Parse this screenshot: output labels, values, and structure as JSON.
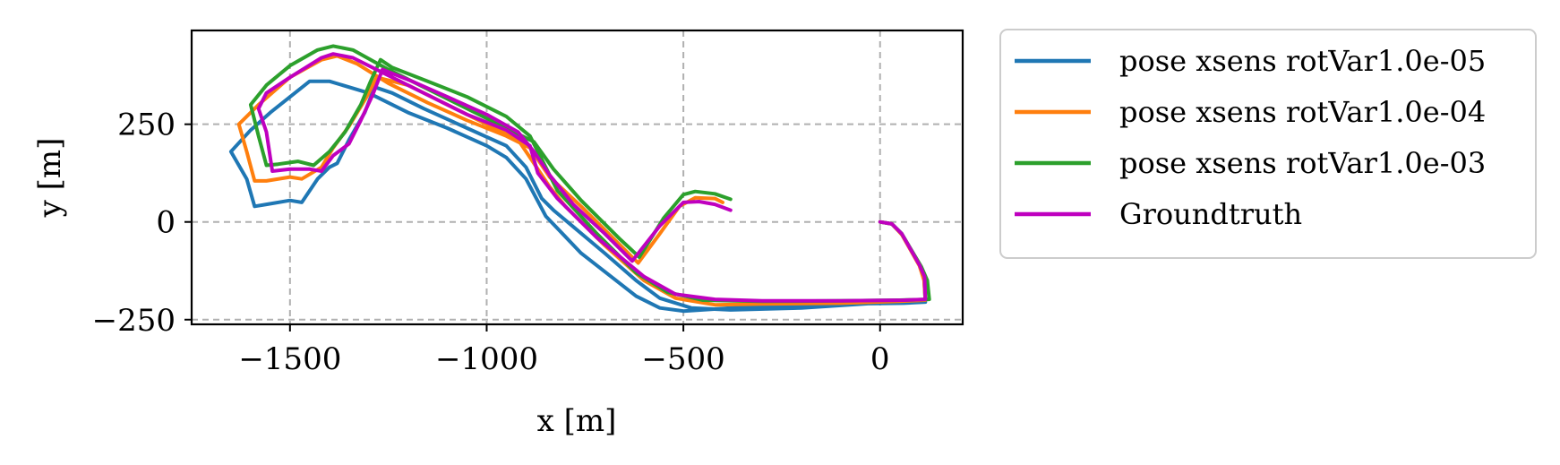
{
  "chart_data": {
    "type": "line",
    "title": "",
    "xlabel": "x [m]",
    "ylabel": "y [m]",
    "xlim": [
      -1750,
      210
    ],
    "ylim": [
      -262,
      490
    ],
    "xticks": [
      {
        "value": -1500,
        "label": "−1500"
      },
      {
        "value": -1000,
        "label": "−1000"
      },
      {
        "value": -500,
        "label": "−500"
      },
      {
        "value": 0,
        "label": "0"
      }
    ],
    "yticks": [
      {
        "value": -250,
        "label": "−250"
      },
      {
        "value": 0,
        "label": "0"
      },
      {
        "value": 250,
        "label": "250"
      }
    ],
    "grid": true,
    "grid_style": "dashed",
    "legend_position": "outside-right-top",
    "series": [
      {
        "name": "pose xsens rotVar1.0e-05",
        "color": "#1f77b4",
        "points": [
          [
            0,
            0
          ],
          [
            30,
            -5
          ],
          [
            55,
            -30
          ],
          [
            100,
            -110
          ],
          [
            112,
            -145
          ],
          [
            115,
            -205
          ],
          [
            60,
            -208
          ],
          [
            -100,
            -210
          ],
          [
            -300,
            -215
          ],
          [
            -500,
            -228
          ],
          [
            -560,
            -220
          ],
          [
            -620,
            -190
          ],
          [
            -760,
            -80
          ],
          [
            -850,
            15
          ],
          [
            -900,
            110
          ],
          [
            -950,
            165
          ],
          [
            -1000,
            195
          ],
          [
            -1100,
            240
          ],
          [
            -1200,
            280
          ],
          [
            -1300,
            330
          ],
          [
            -1400,
            360
          ],
          [
            -1450,
            360
          ],
          [
            -1550,
            280
          ],
          [
            -1600,
            235
          ],
          [
            -1650,
            180
          ],
          [
            -1610,
            110
          ],
          [
            -1590,
            40
          ],
          [
            -1560,
            45
          ],
          [
            -1500,
            55
          ],
          [
            -1470,
            50
          ],
          [
            -1430,
            110
          ],
          [
            -1400,
            140
          ],
          [
            -1380,
            150
          ],
          [
            -1350,
            210
          ],
          [
            -1310,
            280
          ],
          [
            -1285,
            345
          ],
          [
            -1240,
            330
          ],
          [
            -1160,
            290
          ],
          [
            -1050,
            240
          ],
          [
            -950,
            195
          ],
          [
            -900,
            140
          ],
          [
            -860,
            60
          ],
          [
            -830,
            30
          ],
          [
            -700,
            -80
          ],
          [
            -620,
            -150
          ],
          [
            -560,
            -195
          ],
          [
            -480,
            -220
          ],
          [
            -380,
            -225
          ],
          [
            -200,
            -220
          ],
          [
            0,
            -207
          ],
          [
            112,
            -200
          ]
        ]
      },
      {
        "name": "pose xsens rotVar1.0e-04",
        "color": "#ff7f0e",
        "points": [
          [
            -400,
            50
          ],
          [
            -420,
            60
          ],
          [
            -470,
            62
          ],
          [
            -510,
            40
          ],
          [
            -560,
            -30
          ],
          [
            -615,
            -105
          ],
          [
            -660,
            -60
          ],
          [
            -760,
            40
          ],
          [
            -840,
            115
          ],
          [
            -890,
            190
          ],
          [
            -950,
            220
          ],
          [
            -1050,
            260
          ],
          [
            -1150,
            305
          ],
          [
            -1250,
            355
          ],
          [
            -1330,
            405
          ],
          [
            -1380,
            425
          ],
          [
            -1420,
            415
          ],
          [
            -1500,
            370
          ],
          [
            -1580,
            300
          ],
          [
            -1630,
            250
          ],
          [
            -1610,
            180
          ],
          [
            -1590,
            105
          ],
          [
            -1560,
            105
          ],
          [
            -1500,
            115
          ],
          [
            -1470,
            110
          ],
          [
            -1420,
            140
          ],
          [
            -1390,
            190
          ],
          [
            -1350,
            245
          ],
          [
            -1305,
            320
          ],
          [
            -1280,
            370
          ],
          [
            -1200,
            350
          ],
          [
            -1100,
            300
          ],
          [
            -1000,
            250
          ],
          [
            -920,
            210
          ],
          [
            -880,
            150
          ],
          [
            -840,
            90
          ],
          [
            -800,
            40
          ],
          [
            -700,
            -60
          ],
          [
            -600,
            -150
          ],
          [
            -520,
            -195
          ],
          [
            -420,
            -212
          ],
          [
            -300,
            -210
          ],
          [
            -100,
            -208
          ],
          [
            50,
            -203
          ],
          [
            115,
            -200
          ],
          [
            112,
            -150
          ],
          [
            100,
            -112
          ],
          [
            55,
            -32
          ],
          [
            30,
            -5
          ],
          [
            0,
            0
          ]
        ]
      },
      {
        "name": "pose xsens rotVar1.0e-03",
        "color": "#2ca02c",
        "points": [
          [
            -380,
            58
          ],
          [
            -420,
            72
          ],
          [
            -470,
            78
          ],
          [
            -500,
            70
          ],
          [
            -550,
            10
          ],
          [
            -612,
            -90
          ],
          [
            -660,
            -45
          ],
          [
            -760,
            55
          ],
          [
            -830,
            135
          ],
          [
            -880,
            205
          ],
          [
            -950,
            240
          ],
          [
            -1050,
            290
          ],
          [
            -1150,
            340
          ],
          [
            -1250,
            390
          ],
          [
            -1340,
            440
          ],
          [
            -1390,
            450
          ],
          [
            -1430,
            440
          ],
          [
            -1500,
            400
          ],
          [
            -1560,
            350
          ],
          [
            -1600,
            300
          ],
          [
            -1580,
            220
          ],
          [
            -1560,
            145
          ],
          [
            -1530,
            148
          ],
          [
            -1480,
            155
          ],
          [
            -1440,
            145
          ],
          [
            -1400,
            180
          ],
          [
            -1360,
            230
          ],
          [
            -1320,
            300
          ],
          [
            -1295,
            360
          ],
          [
            -1270,
            415
          ],
          [
            -1240,
            395
          ],
          [
            -1150,
            360
          ],
          [
            -1050,
            320
          ],
          [
            -950,
            270
          ],
          [
            -890,
            220
          ],
          [
            -860,
            160
          ],
          [
            -820,
            80
          ],
          [
            -720,
            -30
          ],
          [
            -620,
            -130
          ],
          [
            -540,
            -180
          ],
          [
            -450,
            -200
          ],
          [
            -300,
            -203
          ],
          [
            -100,
            -202
          ],
          [
            50,
            -200
          ],
          [
            125,
            -198
          ],
          [
            120,
            -150
          ],
          [
            105,
            -115
          ],
          [
            55,
            -30
          ],
          [
            30,
            -5
          ],
          [
            0,
            0
          ]
        ]
      },
      {
        "name": "Groundtruth",
        "color": "#bf00bf",
        "points": [
          [
            0,
            0
          ],
          [
            30,
            -5
          ],
          [
            55,
            -30
          ],
          [
            100,
            -110
          ],
          [
            113,
            -140
          ],
          [
            115,
            -198
          ],
          [
            60,
            -200
          ],
          [
            -100,
            -202
          ],
          [
            -300,
            -202
          ],
          [
            -420,
            -198
          ],
          [
            -520,
            -185
          ],
          [
            -600,
            -140
          ],
          [
            -720,
            -40
          ],
          [
            -820,
            60
          ],
          [
            -870,
            125
          ],
          [
            -890,
            195
          ],
          [
            -950,
            235
          ],
          [
            -1050,
            275
          ],
          [
            -1150,
            325
          ],
          [
            -1250,
            375
          ],
          [
            -1340,
            420
          ],
          [
            -1390,
            430
          ],
          [
            -1420,
            420
          ],
          [
            -1500,
            370
          ],
          [
            -1560,
            330
          ],
          [
            -1580,
            290
          ],
          [
            -1560,
            230
          ],
          [
            -1545,
            130
          ],
          [
            -1500,
            135
          ],
          [
            -1450,
            135
          ],
          [
            -1420,
            130
          ],
          [
            -1390,
            170
          ],
          [
            -1350,
            200
          ],
          [
            -1320,
            260
          ],
          [
            -1290,
            325
          ],
          [
            -1265,
            390
          ],
          [
            -1190,
            360
          ],
          [
            -1100,
            320
          ],
          [
            -1000,
            275
          ],
          [
            -920,
            230
          ],
          [
            -880,
            180
          ],
          [
            -840,
            120
          ],
          [
            -780,
            45
          ],
          [
            -700,
            -30
          ],
          [
            -630,
            -100
          ],
          [
            -560,
            -10
          ],
          [
            -500,
            50
          ],
          [
            -460,
            52
          ],
          [
            -420,
            45
          ],
          [
            -380,
            30
          ]
        ]
      }
    ]
  }
}
